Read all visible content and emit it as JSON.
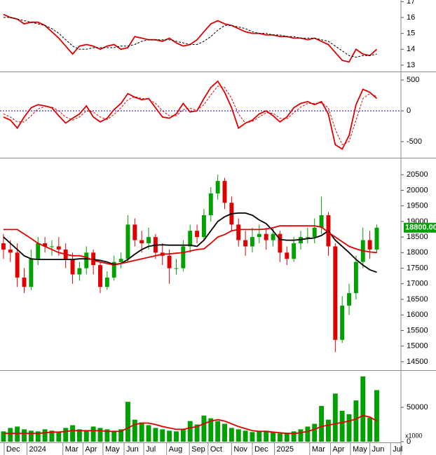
{
  "chart_data": [
    {
      "type": "line",
      "ylim": [
        12.6,
        17.1
      ],
      "yticks": [
        13,
        14,
        15,
        16,
        17
      ],
      "series": [
        {
          "color": "#e00000",
          "style": "solid",
          "values": [
            16.2,
            16.0,
            15.9,
            15.6,
            15.7,
            15.7,
            15.5,
            15.1,
            14.7,
            14.2,
            13.7,
            14.2,
            14.3,
            14.2,
            14.0,
            14.2,
            14.3,
            14.0,
            14.1,
            14.8,
            14.7,
            14.6,
            14.6,
            14.5,
            14.7,
            14.4,
            14.2,
            14.3,
            14.6,
            15.1,
            15.6,
            15.8,
            15.6,
            15.5,
            15.3,
            15.1,
            15.0,
            15.0,
            14.9,
            14.9,
            14.8,
            14.8,
            14.7,
            14.7,
            14.6,
            14.7,
            14.5,
            14.3,
            13.8,
            13.3,
            13.2,
            14.0,
            13.7,
            13.6,
            14.0
          ]
        },
        {
          "color": "#000000",
          "style": "dashed",
          "values": [
            16.0,
            16.0,
            15.9,
            15.8,
            15.7,
            15.6,
            15.5,
            15.3,
            15.0,
            14.6,
            14.2,
            14.0,
            14.0,
            14.1,
            14.1,
            14.1,
            14.1,
            14.2,
            14.2,
            14.3,
            14.5,
            14.6,
            14.6,
            14.6,
            14.6,
            14.5,
            14.4,
            14.3,
            14.3,
            14.5,
            14.8,
            15.2,
            15.5,
            15.5,
            15.4,
            15.3,
            15.1,
            15.0,
            15.0,
            14.9,
            14.9,
            14.8,
            14.8,
            14.7,
            14.7,
            14.7,
            14.6,
            14.5,
            14.2,
            13.9,
            13.6,
            13.5,
            13.6,
            13.6,
            13.7
          ]
        }
      ]
    },
    {
      "type": "line",
      "ylim": [
        -750,
        615
      ],
      "yticks": [
        500,
        0,
        -500
      ],
      "zero_line": true,
      "series": [
        {
          "color": "#e00000",
          "style": "solid",
          "values": [
            -100,
            -150,
            -280,
            -100,
            50,
            100,
            80,
            50,
            -80,
            -200,
            -120,
            -50,
            80,
            -100,
            -180,
            -120,
            20,
            120,
            280,
            220,
            180,
            200,
            50,
            -100,
            -120,
            -50,
            120,
            -20,
            0,
            200,
            380,
            480,
            300,
            50,
            -280,
            -200,
            -150,
            -50,
            0,
            -80,
            -180,
            -100,
            50,
            120,
            150,
            100,
            150,
            -50,
            -550,
            -620,
            -400,
            100,
            350,
            300,
            200
          ]
        },
        {
          "color": "#e00000",
          "style": "dashed",
          "values": [
            -50,
            -100,
            -180,
            -180,
            -80,
            30,
            70,
            60,
            0,
            -100,
            -150,
            -100,
            0,
            -20,
            -100,
            -140,
            -60,
            50,
            180,
            230,
            200,
            190,
            120,
            0,
            -80,
            -80,
            20,
            40,
            10,
            100,
            260,
            400,
            380,
            200,
            -50,
            -200,
            -170,
            -100,
            -30,
            -40,
            -120,
            -130,
            -30,
            60,
            120,
            120,
            130,
            50,
            -300,
            -550,
            -500,
            -150,
            200,
            280,
            230
          ]
        }
      ]
    },
    {
      "type": "candlestick",
      "ylim": [
        14250,
        21000
      ],
      "yticks": [
        14500,
        15000,
        15500,
        16000,
        16500,
        17000,
        17500,
        18000,
        18500,
        19000,
        19500,
        20000,
        20500
      ],
      "up_color": "#00a000",
      "down_color": "#e00000",
      "last_label": "18800.00",
      "open": [
        18300,
        18100,
        18000,
        17200,
        16900,
        17800,
        18300,
        18200,
        18200,
        18100,
        17800,
        17300,
        17500,
        18000,
        17600,
        16900,
        17200,
        17700,
        17800,
        18900,
        18400,
        18300,
        18500,
        18000,
        17900,
        17500,
        17500,
        18200,
        18700,
        18500,
        19200,
        19900,
        20300,
        19600,
        18900,
        18400,
        18200,
        18500,
        18600,
        18400,
        18600,
        18000,
        17800,
        18300,
        18500,
        18500,
        18800,
        19200,
        18200,
        15200,
        16300,
        16700,
        17700,
        18400,
        18100
      ],
      "high": [
        18600,
        18400,
        18300,
        17500,
        18100,
        18500,
        18500,
        18400,
        18500,
        18300,
        18000,
        17700,
        18200,
        18100,
        17700,
        17400,
        17900,
        18000,
        19200,
        19100,
        18700,
        18800,
        18600,
        18300,
        18100,
        17800,
        18400,
        18900,
        18900,
        19400,
        20100,
        20500,
        20400,
        19800,
        19100,
        18700,
        18800,
        18900,
        18800,
        18800,
        18700,
        18200,
        18500,
        18700,
        18800,
        19100,
        19800,
        19300,
        18300,
        16600,
        17000,
        17900,
        18800,
        18700,
        18900
      ],
      "low": [
        17800,
        17700,
        16900,
        16700,
        16800,
        17600,
        18000,
        17900,
        17900,
        17500,
        17000,
        17100,
        17300,
        17300,
        16700,
        16800,
        17100,
        17500,
        17700,
        18200,
        18000,
        18100,
        17800,
        17600,
        17000,
        17300,
        17400,
        18000,
        18300,
        18400,
        19000,
        19700,
        19400,
        18700,
        18200,
        17900,
        18000,
        18300,
        18100,
        18200,
        17700,
        17600,
        17700,
        18100,
        18300,
        18300,
        18600,
        17900,
        14800,
        15100,
        16000,
        16500,
        17500,
        17800,
        18000
      ],
      "close": [
        18100,
        18000,
        17200,
        16900,
        17800,
        18300,
        18200,
        18200,
        18100,
        17800,
        17300,
        17500,
        18000,
        17600,
        16900,
        17200,
        17700,
        17800,
        18900,
        18400,
        18300,
        18500,
        18000,
        17900,
        17500,
        17500,
        18200,
        18700,
        18500,
        19200,
        19900,
        20300,
        19600,
        18900,
        18400,
        18200,
        18500,
        18600,
        18400,
        18600,
        18000,
        17800,
        18300,
        18500,
        18500,
        18800,
        19200,
        18200,
        15200,
        16300,
        16700,
        17700,
        18400,
        18100,
        18800
      ],
      "series": [
        {
          "color": "#000000",
          "style": "solid",
          "values": [
            18500,
            18300,
            18100,
            17900,
            17800,
            17780,
            17780,
            17780,
            17780,
            17780,
            17780,
            17800,
            17800,
            17780,
            17750,
            17700,
            17620,
            17650,
            17780,
            17950,
            18100,
            18200,
            18240,
            18250,
            18240,
            18240,
            18240,
            18240,
            18200,
            18400,
            18700,
            19000,
            19150,
            19250,
            19270,
            19270,
            19200,
            19050,
            18930,
            18700,
            18420,
            18400,
            18400,
            18420,
            18450,
            18470,
            18550,
            18700,
            18400,
            18200,
            18000,
            17780,
            17600,
            17450,
            17370
          ]
        },
        {
          "color": "#e00000",
          "style": "solid",
          "values": [
            18740,
            18740,
            18740,
            18600,
            18450,
            18300,
            18200,
            18100,
            18000,
            17950,
            17900,
            17900,
            17850,
            17750,
            17700,
            17650,
            17600,
            17650,
            17700,
            17750,
            17800,
            17850,
            17900,
            17950,
            17960,
            17980,
            18000,
            18050,
            18100,
            18120,
            18300,
            18500,
            18580,
            18700,
            18740,
            18740,
            18740,
            18740,
            18760,
            18800,
            18860,
            18860,
            18860,
            18860,
            18860,
            18860,
            18820,
            18650,
            18500,
            18350,
            18200,
            18120,
            18060,
            18020,
            18000
          ]
        }
      ]
    },
    {
      "type": "bar",
      "ylim": [
        0,
        102000
      ],
      "yticks": [
        0,
        50000
      ],
      "unit_label": "x1000",
      "color": "#00a000",
      "values": [
        15000,
        20000,
        22000,
        18000,
        16000,
        15000,
        18000,
        16000,
        14000,
        20000,
        24000,
        18000,
        16000,
        22000,
        20000,
        18000,
        15000,
        18000,
        58000,
        32000,
        28000,
        24000,
        20000,
        18000,
        16000,
        15000,
        18000,
        30000,
        25000,
        38000,
        34000,
        30000,
        26000,
        20000,
        18000,
        16000,
        14000,
        15000,
        16000,
        14000,
        12000,
        13000,
        15000,
        18000,
        22000,
        26000,
        52000,
        32000,
        70000,
        45000,
        40000,
        60000,
        95000,
        35000,
        75000
      ],
      "series": [
        {
          "color": "#e00000",
          "style": "solid",
          "values": [
            12000,
            12000,
            12000,
            12000,
            12000,
            12000,
            13000,
            14000,
            14000,
            15000,
            16000,
            16000,
            16000,
            16000,
            16000,
            15000,
            15000,
            15000,
            20000,
            25000,
            27000,
            27000,
            25000,
            22000,
            20000,
            18000,
            18000,
            20000,
            22000,
            26000,
            30000,
            32000,
            30000,
            26000,
            22000,
            19000,
            16000,
            15000,
            15000,
            14000,
            13000,
            12000,
            12000,
            13000,
            15000,
            18000,
            22000,
            24000,
            26000,
            28000,
            30000,
            33000,
            38000,
            36000,
            30000
          ]
        }
      ],
      "xlim": [
        -0.5,
        57.5
      ],
      "xticks": [
        {
          "value": 0.1,
          "label": "Dec"
        },
        {
          "value": 3.4,
          "label": "2024"
        },
        {
          "value": 8.6,
          "label": "Mar"
        },
        {
          "value": 11.5,
          "label": "Apr"
        },
        {
          "value": 14.4,
          "label": "May"
        },
        {
          "value": 17.45,
          "label": "Jun"
        },
        {
          "value": 20.3,
          "label": "Jul"
        },
        {
          "value": 23.6,
          "label": "Aug"
        },
        {
          "value": 26.9,
          "label": "Sep"
        },
        {
          "value": 29.6,
          "label": "Oct"
        },
        {
          "value": 33,
          "label": "Nov"
        },
        {
          "value": 36,
          "label": "Dec"
        },
        {
          "value": 39.2,
          "label": "2025"
        },
        {
          "value": 44.3,
          "label": "Mar"
        },
        {
          "value": 47.3,
          "label": "Apr"
        },
        {
          "value": 50.2,
          "label": "May"
        },
        {
          "value": 53,
          "label": "Jun"
        },
        {
          "value": 56,
          "label": "Jul"
        }
      ]
    }
  ]
}
